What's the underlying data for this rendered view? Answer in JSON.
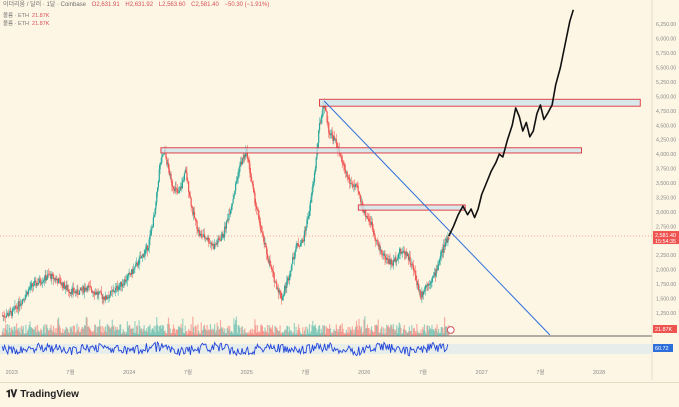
{
  "header": {
    "symbol": "이더리움 / 달러 · 1달 · Coinbase",
    "open": "O2,631.91",
    "high": "H2,631.92",
    "low": "L2,563.60",
    "close": "C2,581.40",
    "change": "−50.30 (−1.91%)"
  },
  "legend": [
    {
      "label": "볼륨 · ETH",
      "value": "21.87K"
    },
    {
      "label": "볼륨 · ETH",
      "value": "21.87K"
    }
  ],
  "badges": {
    "price_value": "2,581.40",
    "price_time": "15:54:35",
    "volume": "21.87K",
    "rsi": "60.72"
  },
  "brand": "TradingView",
  "colors": {
    "background": "#fdf6e4",
    "up": "#26a69a",
    "down": "#ef5350",
    "trendline": "#2f6fdc",
    "zone_fill": "#cfe6ec",
    "zone_border": "#e0303a",
    "projection": "#111111",
    "rsi_line": "#2246d8"
  },
  "chart_data": {
    "type": "line",
    "ylim": [
      850,
      6600
    ],
    "y_ticks": [
      {
        "value": 6250,
        "label": "6,250.00"
      },
      {
        "value": 6000,
        "label": "6,000.00"
      },
      {
        "value": 5750,
        "label": "5,750.00"
      },
      {
        "value": 5500,
        "label": "5,500.00"
      },
      {
        "value": 5250,
        "label": "5,250.00"
      },
      {
        "value": 5000,
        "label": "5,000.00"
      },
      {
        "value": 4750,
        "label": "4,750.00"
      },
      {
        "value": 4500,
        "label": "4,500.00"
      },
      {
        "value": 4250,
        "label": "4,250.00"
      },
      {
        "value": 4000,
        "label": "4,000.00"
      },
      {
        "value": 3750,
        "label": "3,750.00"
      },
      {
        "value": 3500,
        "label": "3,500.00"
      },
      {
        "value": 3250,
        "label": "3,250.00"
      },
      {
        "value": 3000,
        "label": "3,000.00"
      },
      {
        "value": 2750,
        "label": "2,750.00"
      },
      {
        "value": 2250,
        "label": "2,250.00"
      },
      {
        "value": 2000,
        "label": "2,000.00"
      },
      {
        "value": 1750,
        "label": "1,750.00"
      },
      {
        "value": 1500,
        "label": "1,500.00"
      },
      {
        "value": 1250,
        "label": "1,250.00"
      }
    ],
    "x_ticks": [
      {
        "t": 2023.0,
        "label": "2023"
      },
      {
        "t": 2023.5,
        "label": "7월"
      },
      {
        "t": 2024.0,
        "label": "2024"
      },
      {
        "t": 2024.5,
        "label": "7월"
      },
      {
        "t": 2025.0,
        "label": "2025"
      },
      {
        "t": 2025.5,
        "label": "7월"
      },
      {
        "t": 2026.0,
        "label": "2026"
      },
      {
        "t": 2026.5,
        "label": "7월"
      },
      {
        "t": 2027.0,
        "label": "2027"
      },
      {
        "t": 2027.5,
        "label": "7월"
      },
      {
        "t": 2028.0,
        "label": "2028"
      }
    ],
    "xlim": [
      2022.9,
      2028.45
    ],
    "price_path": [
      [
        2022.92,
        1200
      ],
      [
        2023.0,
        1250
      ],
      [
        2023.08,
        1450
      ],
      [
        2023.16,
        1700
      ],
      [
        2023.24,
        1800
      ],
      [
        2023.32,
        1900
      ],
      [
        2023.4,
        1800
      ],
      [
        2023.48,
        1650
      ],
      [
        2023.56,
        1600
      ],
      [
        2023.64,
        1700
      ],
      [
        2023.72,
        1600
      ],
      [
        2023.8,
        1500
      ],
      [
        2023.88,
        1650
      ],
      [
        2023.96,
        1800
      ],
      [
        2024.04,
        2000
      ],
      [
        2024.1,
        2200
      ],
      [
        2024.16,
        2400
      ],
      [
        2024.22,
        3000
      ],
      [
        2024.26,
        3800
      ],
      [
        2024.3,
        4050
      ],
      [
        2024.36,
        3500
      ],
      [
        2024.42,
        3300
      ],
      [
        2024.48,
        3700
      ],
      [
        2024.54,
        3000
      ],
      [
        2024.6,
        2600
      ],
      [
        2024.66,
        2550
      ],
      [
        2024.72,
        2400
      ],
      [
        2024.8,
        2600
      ],
      [
        2024.88,
        3200
      ],
      [
        2024.94,
        3800
      ],
      [
        2025.0,
        4050
      ],
      [
        2025.06,
        3300
      ],
      [
        2025.12,
        2700
      ],
      [
        2025.18,
        2200
      ],
      [
        2025.24,
        1800
      ],
      [
        2025.3,
        1500
      ],
      [
        2025.36,
        1900
      ],
      [
        2025.42,
        2400
      ],
      [
        2025.48,
        2500
      ],
      [
        2025.54,
        3100
      ],
      [
        2025.58,
        3700
      ],
      [
        2025.62,
        4500
      ],
      [
        2025.66,
        4900
      ],
      [
        2025.7,
        4400
      ],
      [
        2025.76,
        4200
      ],
      [
        2025.82,
        3800
      ],
      [
        2025.88,
        3500
      ],
      [
        2025.94,
        3400
      ],
      [
        2026.0,
        3000
      ],
      [
        2026.06,
        2800
      ],
      [
        2026.12,
        2400
      ],
      [
        2026.18,
        2200
      ],
      [
        2026.24,
        2100
      ],
      [
        2026.3,
        2300
      ],
      [
        2026.36,
        2300
      ],
      [
        2026.42,
        2000
      ],
      [
        2026.48,
        1550
      ],
      [
        2026.52,
        1700
      ],
      [
        2026.56,
        1800
      ],
      [
        2026.6,
        1900
      ],
      [
        2026.66,
        2300
      ],
      [
        2026.72,
        2581
      ]
    ],
    "projection": [
      [
        2026.72,
        2581
      ],
      [
        2026.76,
        2750
      ],
      [
        2026.8,
        2950
      ],
      [
        2026.84,
        3100
      ],
      [
        2026.88,
        2950
      ],
      [
        2026.91,
        3050
      ],
      [
        2026.94,
        2900
      ],
      [
        2026.97,
        3050
      ],
      [
        2027.0,
        3300
      ],
      [
        2027.04,
        3500
      ],
      [
        2027.08,
        3700
      ],
      [
        2027.12,
        3850
      ],
      [
        2027.15,
        4000
      ],
      [
        2027.18,
        3950
      ],
      [
        2027.22,
        4250
      ],
      [
        2027.26,
        4500
      ],
      [
        2027.29,
        4800
      ],
      [
        2027.32,
        4650
      ],
      [
        2027.35,
        4400
      ],
      [
        2027.38,
        4550
      ],
      [
        2027.41,
        4300
      ],
      [
        2027.44,
        4400
      ],
      [
        2027.47,
        4700
      ],
      [
        2027.5,
        4850
      ],
      [
        2027.53,
        4600
      ],
      [
        2027.56,
        4700
      ],
      [
        2027.6,
        4850
      ],
      [
        2027.63,
        5200
      ],
      [
        2027.67,
        5500
      ],
      [
        2027.71,
        5900
      ],
      [
        2027.75,
        6300
      ],
      [
        2027.78,
        6500
      ]
    ],
    "trendline": [
      [
        2025.66,
        4920
      ],
      [
        2027.58,
        870
      ]
    ],
    "zones": [
      {
        "t1": 2025.62,
        "t2": 2028.35,
        "low": 4830,
        "high": 4950
      },
      {
        "t1": 2024.27,
        "t2": 2027.85,
        "low": 4020,
        "high": 4110
      },
      {
        "t1": 2025.95,
        "t2": 2026.86,
        "low": 3030,
        "high": 3120
      }
    ],
    "current_price": 2581.4
  }
}
